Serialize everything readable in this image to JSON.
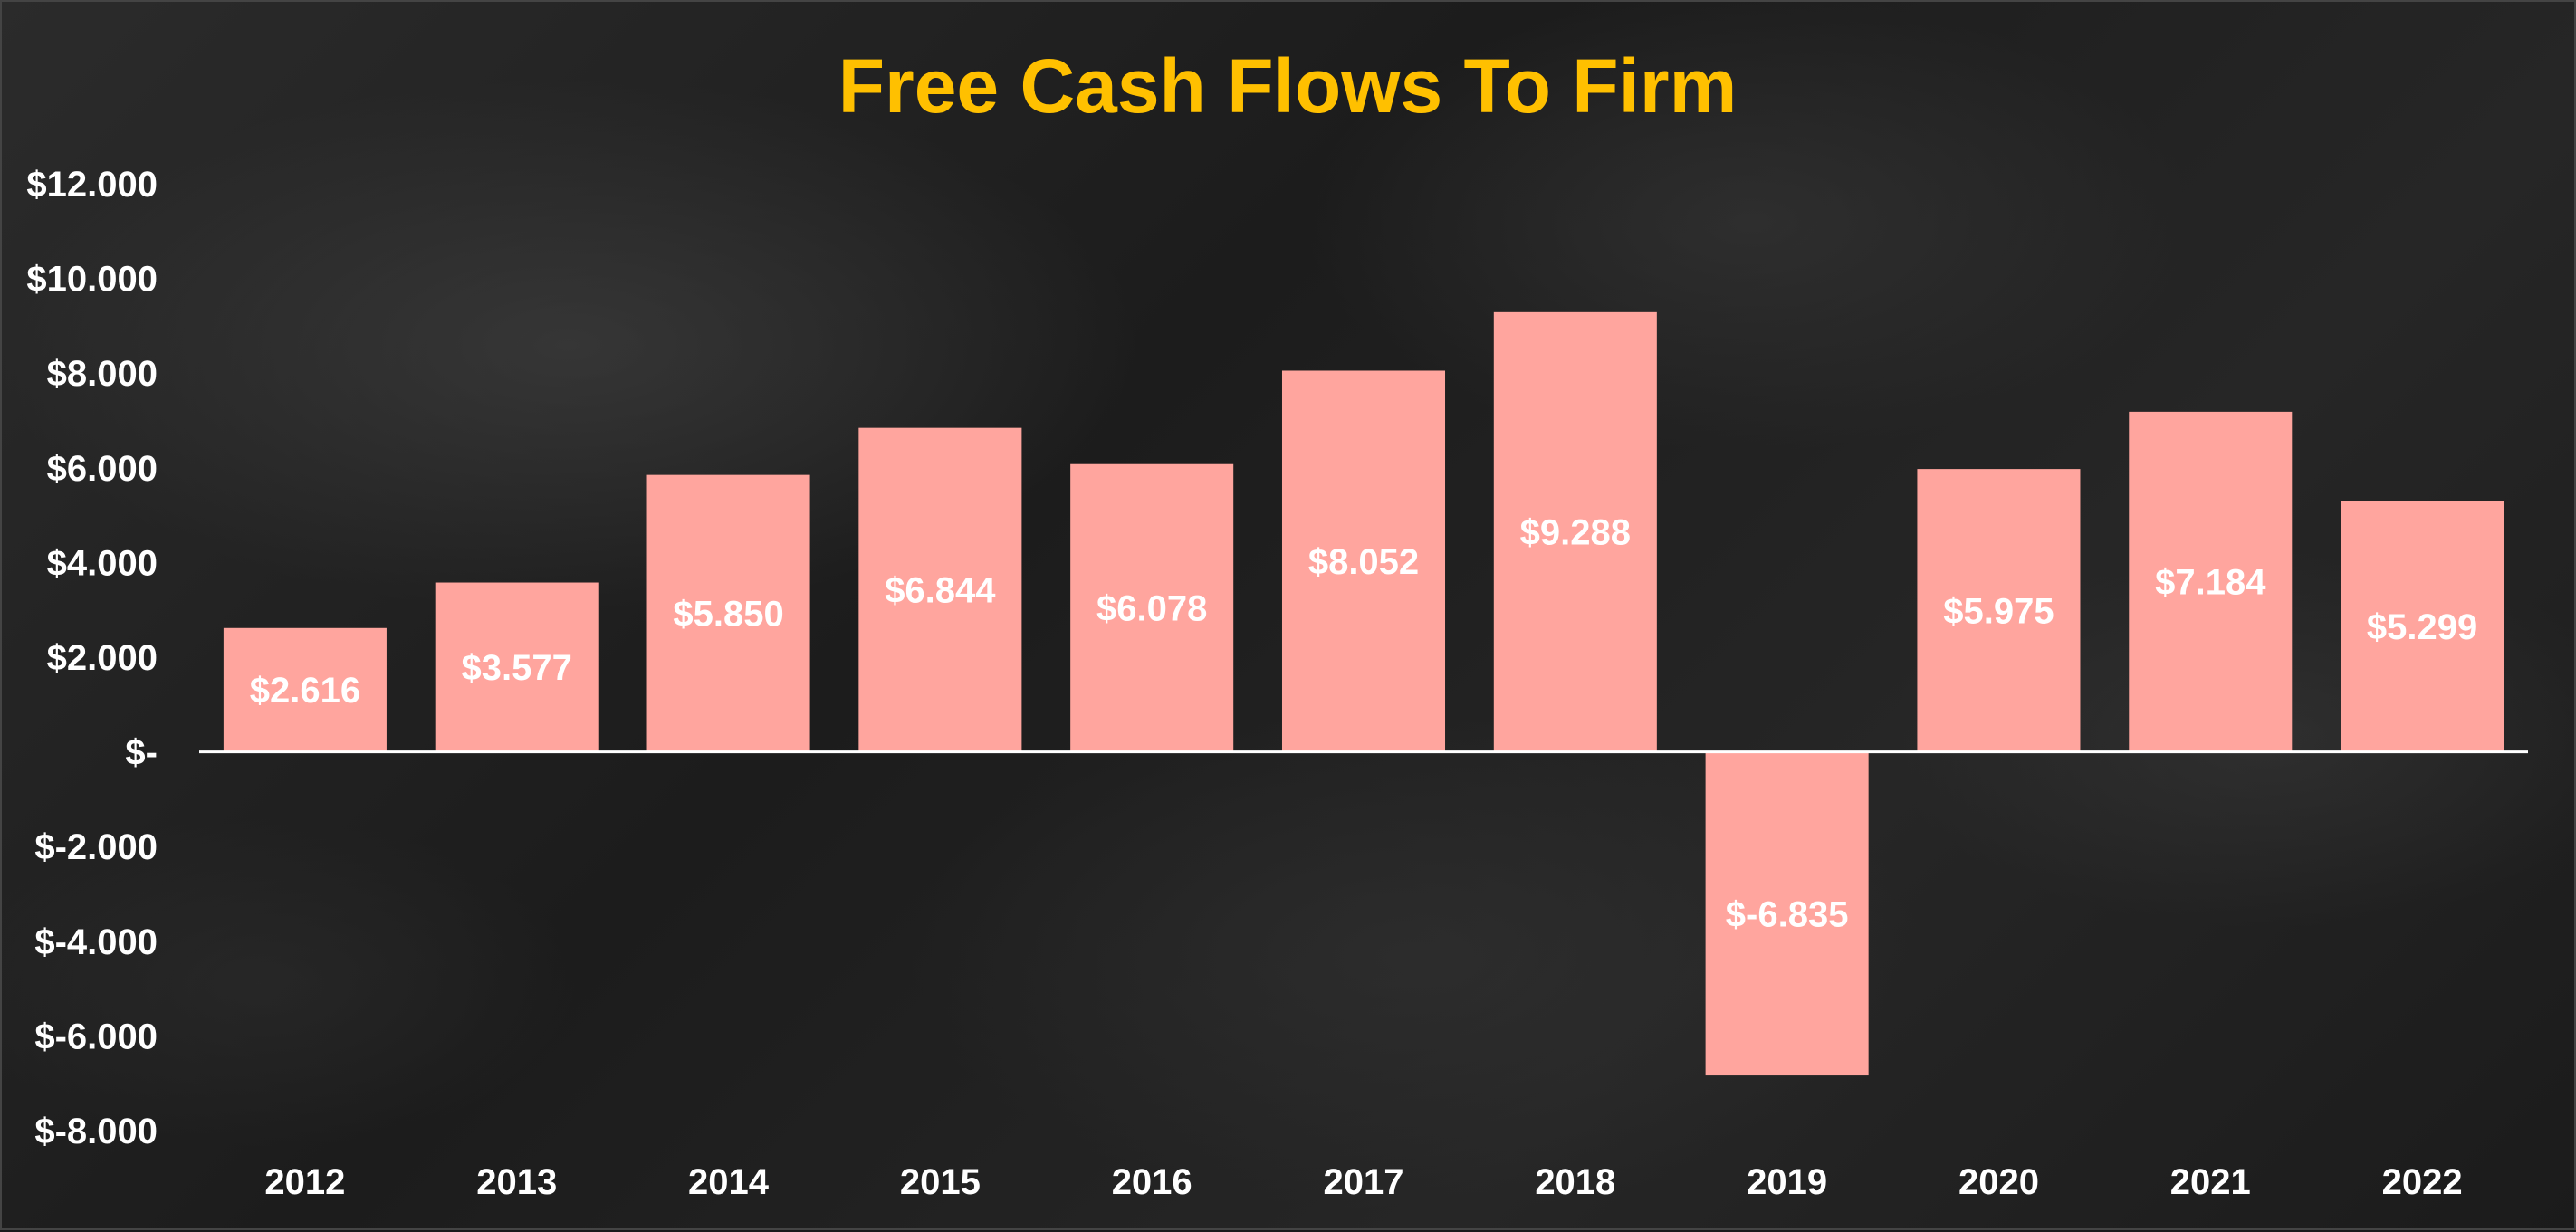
{
  "chart_data": {
    "type": "bar",
    "title": "Free Cash Flows To Firm",
    "xlabel": "",
    "ylabel": "",
    "categories": [
      "2012",
      "2013",
      "2014",
      "2015",
      "2016",
      "2017",
      "2018",
      "2019",
      "2020",
      "2021",
      "2022"
    ],
    "values": [
      2616,
      3577,
      5850,
      6844,
      6078,
      8052,
      9288,
      -6835,
      5975,
      7184,
      5299
    ],
    "data_labels": [
      "$2.616",
      "$3.577",
      "$5.850",
      "$6.844",
      "$6.078",
      "$8.052",
      "$9.288",
      "$-6.835",
      "$5.975",
      "$7.184",
      "$5.299"
    ],
    "ylim": [
      -8000,
      12000
    ],
    "yticks": [
      12000,
      10000,
      8000,
      6000,
      4000,
      2000,
      0,
      -2000,
      -4000,
      -6000,
      -8000
    ],
    "ytick_labels": [
      "$12.000",
      "$10.000",
      "$8.000",
      "$6.000",
      "$4.000",
      "$2.000",
      "$-",
      "$-2.000",
      "$-4.000",
      "$-6.000",
      "$-8.000"
    ],
    "grid": false,
    "legend": "none",
    "colors": {
      "bar": "#FFA59E",
      "title": "#FFC000",
      "text": "#FFFFFF",
      "axis": "#FFFFFF",
      "background": "#222222"
    }
  }
}
